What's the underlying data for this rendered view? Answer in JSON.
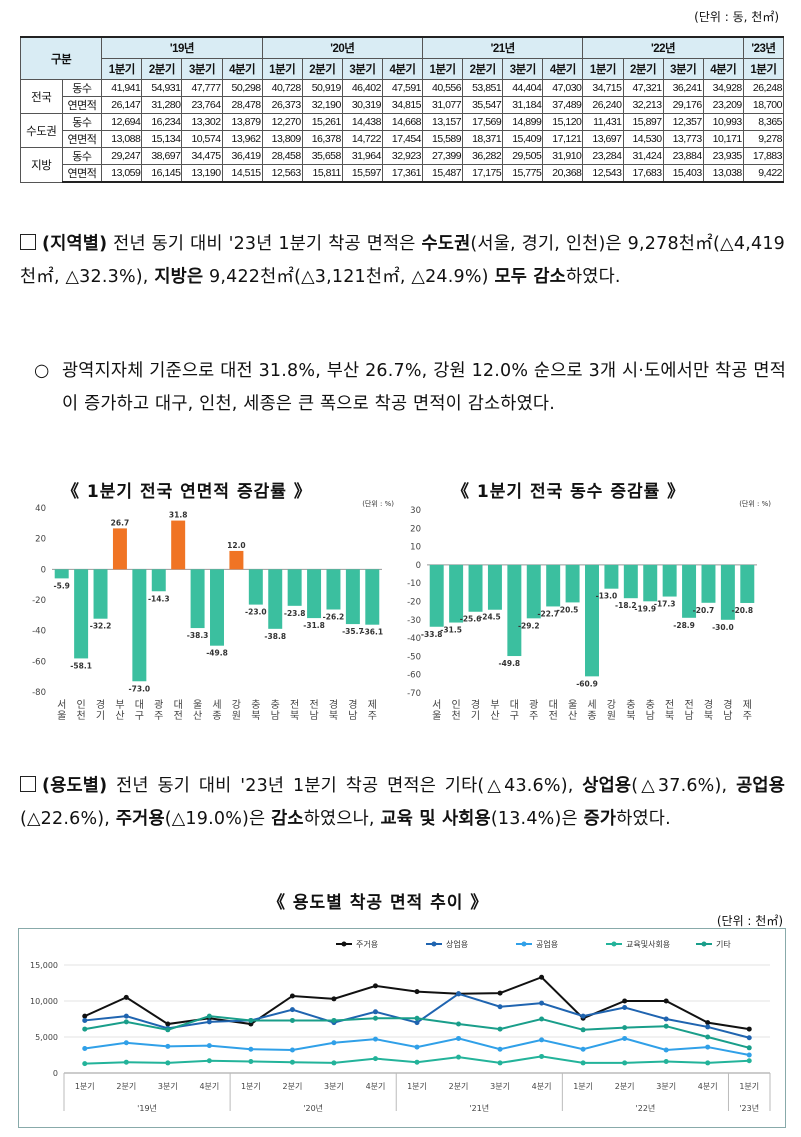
{
  "unit_top": "(단위 : 동, 천㎡)",
  "table": {
    "header_label": "구분",
    "years": [
      "'19년",
      "'20년",
      "'21년",
      "'22년",
      "'23년"
    ],
    "quarters": [
      "1분기",
      "2분기",
      "3분기",
      "4분기",
      "1분기",
      "2분기",
      "3분기",
      "4분기",
      "1분기",
      "2분기",
      "3분기",
      "4분기",
      "1분기",
      "2분기",
      "3분기",
      "4분기",
      "1분기"
    ],
    "rows": [
      {
        "region": "전국",
        "metrics": [
          {
            "name": "동수",
            "values": [
              "41,941",
              "54,931",
              "47,777",
              "50,298",
              "40,728",
              "50,919",
              "46,402",
              "47,591",
              "40,556",
              "53,851",
              "44,404",
              "47,030",
              "34,715",
              "47,321",
              "36,241",
              "34,928",
              "26,248"
            ]
          },
          {
            "name": "연면적",
            "values": [
              "26,147",
              "31,280",
              "23,764",
              "28,478",
              "26,373",
              "32,190",
              "30,319",
              "34,815",
              "31,077",
              "35,547",
              "31,184",
              "37,489",
              "26,240",
              "32,213",
              "29,176",
              "23,209",
              "18,700"
            ]
          }
        ]
      },
      {
        "region": "수도권",
        "metrics": [
          {
            "name": "동수",
            "values": [
              "12,694",
              "16,234",
              "13,302",
              "13,879",
              "12,270",
              "15,261",
              "14,438",
              "14,668",
              "13,157",
              "17,569",
              "14,899",
              "15,120",
              "11,431",
              "15,897",
              "12,357",
              "10,993",
              "8,365"
            ]
          },
          {
            "name": "연면적",
            "values": [
              "13,088",
              "15,134",
              "10,574",
              "13,962",
              "13,809",
              "16,378",
              "14,722",
              "17,454",
              "15,589",
              "18,371",
              "15,409",
              "17,121",
              "13,697",
              "14,530",
              "13,773",
              "10,171",
              "9,278"
            ]
          }
        ]
      },
      {
        "region": "지방",
        "metrics": [
          {
            "name": "동수",
            "values": [
              "29,247",
              "38,697",
              "34,475",
              "36,419",
              "28,458",
              "35,658",
              "31,964",
              "32,923",
              "27,399",
              "36,282",
              "29,505",
              "31,910",
              "23,284",
              "31,424",
              "23,884",
              "23,935",
              "17,883"
            ]
          },
          {
            "name": "연면적",
            "values": [
              "13,059",
              "16,145",
              "13,190",
              "14,515",
              "12,563",
              "15,811",
              "15,597",
              "17,361",
              "15,487",
              "17,175",
              "15,775",
              "20,368",
              "12,543",
              "17,683",
              "15,403",
              "13,038",
              "9,422"
            ]
          }
        ]
      }
    ]
  },
  "para1": {
    "p1": "(지역별)",
    "p2": " 전년 동기 대비 '23년 1분기 착공 면적은 ",
    "p3": "수도권",
    "p4": "(서울, 경기, 인천)은 9,278천㎡(△4,419천㎡, △32.3%), ",
    "p5": "지방은",
    "p6": " 9,422천㎡(△3,121천㎡, △24.9%) ",
    "p7": "모두 감소",
    "p8": "하였다."
  },
  "bullet1": {
    "mark": "○",
    "text": "광역지자체 기준으로 대전 31.8%, 부산 26.7%, 강원 12.0% 순으로 3개 시·도에서만 착공 면적이 증가하고 대구, 인천, 세종은 큰 폭으로 착공 면적이 감소하였다."
  },
  "para2": {
    "p1": "(용도별)",
    "p2": " 전년 동기 대비 '23년 1분기 착공 면적은 기타(△43.6%), ",
    "p3": "상업용",
    "p4": "(△37.6%), ",
    "p5": "공업용",
    "p6": "(△22.6%), ",
    "p7": "주거용",
    "p8": "(△19.0%)은 ",
    "p9": "감소",
    "p10": "하였으나, ",
    "p11": "교육 및 사회용",
    "p12": "(13.4%)은 ",
    "p13": "증가",
    "p14": "하였다."
  },
  "chart_titles": {
    "area": "《 1분기 전국 연면적 증감률 》",
    "count": "《 1분기 전국 동수 증감률 》",
    "usage": "《 용도별 착공 면적 추이 》"
  },
  "chart_data": [
    {
      "type": "bar",
      "title": "1분기 전국 연면적 증감률",
      "unit": "(단위 : %)",
      "categories": [
        "서울",
        "인천",
        "경기",
        "부산",
        "대구",
        "광주",
        "대전",
        "울산",
        "세종",
        "강원",
        "충북",
        "충남",
        "전북",
        "전남",
        "경북",
        "경남",
        "제주"
      ],
      "values": [
        -5.9,
        -58.1,
        -32.2,
        26.7,
        -73.0,
        -14.3,
        31.8,
        -38.3,
        -49.8,
        12.0,
        -23.0,
        -38.8,
        -23.8,
        -31.8,
        -26.2,
        -35.7,
        -36.1
      ],
      "ylim": [
        -80,
        40
      ],
      "yticks": [
        -80,
        -60,
        -40,
        -20,
        0,
        20,
        40
      ],
      "colors": {
        "negative": "#3bbf9f",
        "positive": "#f07424"
      }
    },
    {
      "type": "bar",
      "title": "1분기 전국 동수 증감률",
      "unit": "(단위 : %)",
      "categories": [
        "서울",
        "인천",
        "경기",
        "부산",
        "대구",
        "광주",
        "대전",
        "울산",
        "세종",
        "강원",
        "충북",
        "충남",
        "전북",
        "전남",
        "경북",
        "경남",
        "제주"
      ],
      "values": [
        -33.8,
        -31.5,
        -25.6,
        -24.5,
        -49.8,
        -29.2,
        -22.7,
        -20.5,
        -60.9,
        -13.0,
        -18.2,
        -19.9,
        -17.3,
        -28.9,
        -20.7,
        -30.0,
        -20.8
      ],
      "ylim": [
        -70,
        30
      ],
      "yticks": [
        -70,
        -60,
        -50,
        -40,
        -30,
        -20,
        -10,
        0,
        10,
        20,
        30
      ],
      "colors": {
        "negative": "#3bbf9f"
      }
    },
    {
      "type": "line",
      "title": "용도별 착공 면적 추이",
      "unit": "(단위 : 천㎡)",
      "x": [
        "1분기",
        "2분기",
        "3분기",
        "4분기",
        "1분기",
        "2분기",
        "3분기",
        "4분기",
        "1분기",
        "2분기",
        "3분기",
        "4분기",
        "1분기",
        "2분기",
        "3분기",
        "4분기",
        "1분기"
      ],
      "year_groups": [
        {
          "label": "'19년",
          "count": 4
        },
        {
          "label": "'20년",
          "count": 4
        },
        {
          "label": "'21년",
          "count": 4
        },
        {
          "label": "'22년",
          "count": 4
        },
        {
          "label": "'23년",
          "count": 1
        }
      ],
      "ylim": [
        0,
        15000
      ],
      "yticks": [
        0,
        5000,
        10000,
        15000
      ],
      "ytick_labels": [
        "0",
        "5,000",
        "10,000",
        "15,000"
      ],
      "series": [
        {
          "name": "주거용",
          "color": "#111111",
          "values": [
            7900,
            10500,
            6800,
            7600,
            6800,
            10700,
            10300,
            12100,
            11300,
            11000,
            11100,
            13300,
            7600,
            10000,
            10000,
            7000,
            6100
          ]
        },
        {
          "name": "상업용",
          "color": "#1f64b0",
          "values": [
            7300,
            7900,
            6200,
            7100,
            7300,
            8800,
            7000,
            8500,
            7000,
            11000,
            9200,
            9700,
            7900,
            9100,
            7500,
            6400,
            4900
          ]
        },
        {
          "name": "공업용",
          "color": "#30a0e8",
          "values": [
            3400,
            4200,
            3700,
            3800,
            3300,
            3200,
            4200,
            4700,
            3600,
            4800,
            3300,
            4600,
            3300,
            4800,
            3200,
            3600,
            2500
          ]
        },
        {
          "name": "교육및사회용",
          "color": "#23b39a",
          "values": [
            1300,
            1500,
            1400,
            1700,
            1600,
            1500,
            1400,
            2000,
            1500,
            2200,
            1400,
            2300,
            1400,
            1400,
            1600,
            1400,
            1700
          ]
        },
        {
          "name": "기타",
          "color": "#199e8a",
          "values": [
            6100,
            7100,
            6000,
            7900,
            7300,
            7300,
            7300,
            7600,
            7600,
            6800,
            6100,
            7500,
            6000,
            6300,
            6500,
            5000,
            3500
          ]
        }
      ]
    }
  ]
}
